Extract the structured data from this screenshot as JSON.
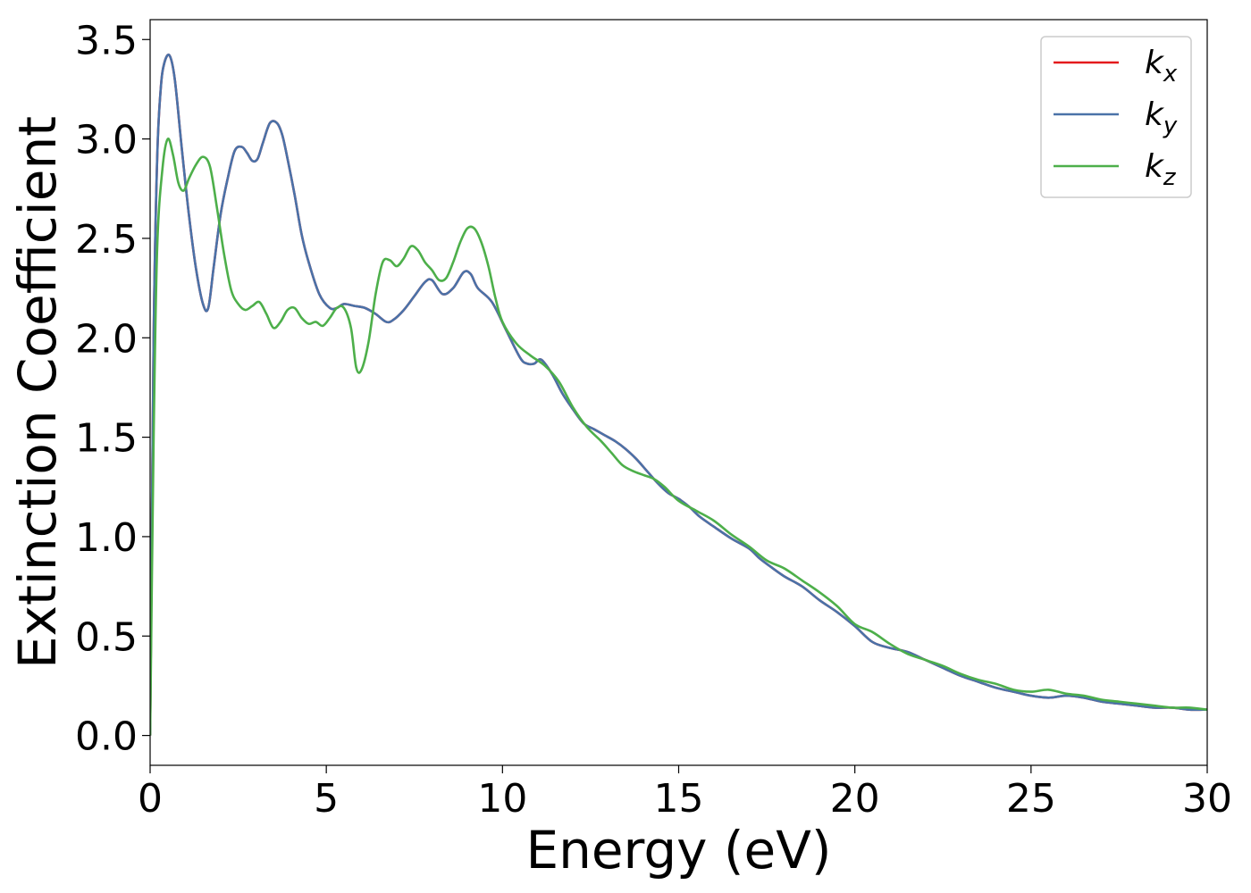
{
  "chart_data": {
    "type": "line",
    "title": "",
    "xlabel": "Energy (eV)",
    "ylabel": "Extinction Coefficient",
    "xlim": [
      0,
      30
    ],
    "ylim": [
      -0.15,
      3.6
    ],
    "xticks": [
      0,
      5,
      10,
      15,
      20,
      25,
      30
    ],
    "xtick_labels": [
      "0",
      "5",
      "10",
      "15",
      "20",
      "25",
      "30"
    ],
    "yticks": [
      0.0,
      0.5,
      1.0,
      1.5,
      2.0,
      2.5,
      3.0,
      3.5
    ],
    "ytick_labels": [
      "0.0",
      "0.5",
      "1.0",
      "1.5",
      "2.0",
      "2.5",
      "3.0",
      "3.5"
    ],
    "grid": false,
    "legend_position": "top-right",
    "series": [
      {
        "name": "k",
        "subscript": "x",
        "color": "#e41a1c",
        "x": [
          0,
          0.1,
          0.2,
          0.3,
          0.4,
          0.55,
          0.7,
          0.9,
          1.1,
          1.3,
          1.5,
          1.65,
          1.8,
          2.0,
          2.2,
          2.4,
          2.6,
          2.75,
          2.9,
          3.05,
          3.2,
          3.4,
          3.6,
          3.75,
          3.9,
          4.1,
          4.3,
          4.5,
          4.8,
          5.1,
          5.3,
          5.5,
          5.8,
          6.1,
          6.4,
          6.7,
          6.9,
          7.2,
          7.5,
          7.8,
          8.0,
          8.3,
          8.6,
          8.9,
          9.1,
          9.3,
          9.7,
          10.1,
          10.5,
          10.7,
          10.9,
          11.1,
          11.4,
          11.7,
          12.0,
          12.3,
          12.6,
          12.9,
          13.2,
          13.5,
          13.8,
          14.1,
          14.4,
          14.7,
          15.0,
          15.3,
          15.6,
          16.0,
          16.5,
          17.0,
          17.3,
          17.6,
          18.0,
          18.5,
          19.0,
          19.5,
          20.0,
          20.5,
          21.0,
          21.5,
          22.0,
          22.5,
          23.0,
          23.5,
          24.0,
          24.5,
          25.0,
          25.5,
          26.0,
          26.5,
          27.0,
          27.5,
          28.0,
          28.5,
          29.0,
          29.5,
          30.0
        ],
        "values": [
          0.0,
          2.0,
          2.9,
          3.25,
          3.38,
          3.42,
          3.3,
          2.95,
          2.62,
          2.35,
          2.17,
          2.15,
          2.35,
          2.62,
          2.8,
          2.94,
          2.96,
          2.93,
          2.89,
          2.9,
          2.98,
          3.08,
          3.08,
          3.02,
          2.9,
          2.72,
          2.52,
          2.38,
          2.22,
          2.15,
          2.15,
          2.17,
          2.16,
          2.15,
          2.12,
          2.08,
          2.09,
          2.14,
          2.21,
          2.28,
          2.29,
          2.22,
          2.25,
          2.33,
          2.32,
          2.25,
          2.18,
          2.04,
          1.9,
          1.87,
          1.87,
          1.89,
          1.82,
          1.72,
          1.64,
          1.57,
          1.54,
          1.51,
          1.48,
          1.44,
          1.39,
          1.33,
          1.27,
          1.22,
          1.19,
          1.15,
          1.1,
          1.05,
          0.99,
          0.94,
          0.89,
          0.85,
          0.8,
          0.75,
          0.68,
          0.62,
          0.55,
          0.47,
          0.44,
          0.42,
          0.38,
          0.34,
          0.3,
          0.27,
          0.24,
          0.22,
          0.2,
          0.19,
          0.2,
          0.19,
          0.17,
          0.16,
          0.15,
          0.14,
          0.14,
          0.13,
          0.13
        ]
      },
      {
        "name": "k",
        "subscript": "y",
        "color": "#4a72a8",
        "x": [
          0,
          0.1,
          0.2,
          0.3,
          0.4,
          0.55,
          0.7,
          0.9,
          1.1,
          1.3,
          1.5,
          1.65,
          1.8,
          2.0,
          2.2,
          2.4,
          2.6,
          2.75,
          2.9,
          3.05,
          3.2,
          3.4,
          3.6,
          3.75,
          3.9,
          4.1,
          4.3,
          4.5,
          4.8,
          5.1,
          5.3,
          5.5,
          5.8,
          6.1,
          6.4,
          6.7,
          6.9,
          7.2,
          7.5,
          7.8,
          8.0,
          8.3,
          8.6,
          8.9,
          9.1,
          9.3,
          9.7,
          10.1,
          10.5,
          10.7,
          10.9,
          11.1,
          11.4,
          11.7,
          12.0,
          12.3,
          12.6,
          12.9,
          13.2,
          13.5,
          13.8,
          14.1,
          14.4,
          14.7,
          15.0,
          15.3,
          15.6,
          16.0,
          16.5,
          17.0,
          17.3,
          17.6,
          18.0,
          18.5,
          19.0,
          19.5,
          20.0,
          20.5,
          21.0,
          21.5,
          22.0,
          22.5,
          23.0,
          23.5,
          24.0,
          24.5,
          25.0,
          25.5,
          26.0,
          26.5,
          27.0,
          27.5,
          28.0,
          28.5,
          29.0,
          29.5,
          30.0
        ],
        "values": [
          0.0,
          2.0,
          2.9,
          3.25,
          3.38,
          3.42,
          3.3,
          2.95,
          2.62,
          2.35,
          2.17,
          2.15,
          2.35,
          2.62,
          2.8,
          2.94,
          2.96,
          2.93,
          2.89,
          2.9,
          2.98,
          3.08,
          3.08,
          3.02,
          2.9,
          2.72,
          2.52,
          2.38,
          2.22,
          2.15,
          2.15,
          2.17,
          2.16,
          2.15,
          2.12,
          2.08,
          2.09,
          2.14,
          2.21,
          2.28,
          2.29,
          2.22,
          2.25,
          2.33,
          2.32,
          2.25,
          2.18,
          2.04,
          1.9,
          1.87,
          1.87,
          1.89,
          1.82,
          1.72,
          1.64,
          1.57,
          1.54,
          1.51,
          1.48,
          1.44,
          1.39,
          1.33,
          1.27,
          1.22,
          1.19,
          1.15,
          1.1,
          1.05,
          0.99,
          0.94,
          0.89,
          0.85,
          0.8,
          0.75,
          0.68,
          0.62,
          0.55,
          0.47,
          0.44,
          0.42,
          0.38,
          0.34,
          0.3,
          0.27,
          0.24,
          0.22,
          0.2,
          0.19,
          0.2,
          0.19,
          0.17,
          0.16,
          0.15,
          0.14,
          0.14,
          0.13,
          0.13
        ]
      },
      {
        "name": "k",
        "subscript": "z",
        "color": "#4daf4a",
        "x": [
          0,
          0.1,
          0.2,
          0.35,
          0.5,
          0.65,
          0.8,
          0.95,
          1.1,
          1.3,
          1.5,
          1.7,
          1.9,
          2.1,
          2.3,
          2.5,
          2.7,
          2.9,
          3.1,
          3.3,
          3.5,
          3.7,
          3.9,
          4.1,
          4.3,
          4.5,
          4.7,
          4.9,
          5.1,
          5.3,
          5.5,
          5.7,
          5.85,
          6.0,
          6.2,
          6.4,
          6.6,
          6.8,
          7.0,
          7.2,
          7.4,
          7.6,
          7.8,
          8.0,
          8.2,
          8.4,
          8.6,
          8.8,
          9.0,
          9.2,
          9.4,
          9.6,
          9.8,
          10.0,
          10.4,
          10.8,
          11.2,
          11.6,
          12.0,
          12.4,
          12.8,
          13.1,
          13.4,
          13.7,
          14.0,
          14.3,
          14.6,
          15.0,
          15.5,
          16.0,
          16.5,
          17.0,
          17.5,
          18.0,
          18.5,
          19.0,
          19.5,
          20.0,
          20.5,
          21.0,
          21.5,
          22.0,
          22.5,
          23.0,
          23.5,
          24.0,
          24.5,
          25.0,
          25.5,
          26.0,
          26.5,
          27.0,
          27.5,
          28.0,
          28.5,
          29.0,
          29.5,
          30.0
        ],
        "values": [
          0.0,
          1.5,
          2.45,
          2.85,
          3.0,
          2.92,
          2.78,
          2.74,
          2.8,
          2.87,
          2.91,
          2.86,
          2.65,
          2.42,
          2.24,
          2.17,
          2.14,
          2.16,
          2.18,
          2.12,
          2.05,
          2.08,
          2.14,
          2.15,
          2.1,
          2.07,
          2.08,
          2.06,
          2.1,
          2.15,
          2.15,
          2.05,
          1.85,
          1.84,
          1.98,
          2.22,
          2.38,
          2.39,
          2.36,
          2.4,
          2.46,
          2.44,
          2.38,
          2.34,
          2.29,
          2.3,
          2.38,
          2.48,
          2.55,
          2.55,
          2.48,
          2.36,
          2.2,
          2.08,
          1.97,
          1.91,
          1.86,
          1.78,
          1.65,
          1.55,
          1.48,
          1.42,
          1.36,
          1.33,
          1.31,
          1.29,
          1.25,
          1.18,
          1.13,
          1.08,
          1.01,
          0.95,
          0.88,
          0.84,
          0.78,
          0.72,
          0.65,
          0.56,
          0.52,
          0.46,
          0.41,
          0.38,
          0.35,
          0.31,
          0.28,
          0.26,
          0.23,
          0.22,
          0.23,
          0.21,
          0.2,
          0.18,
          0.17,
          0.16,
          0.15,
          0.14,
          0.14,
          0.13
        ]
      }
    ]
  }
}
